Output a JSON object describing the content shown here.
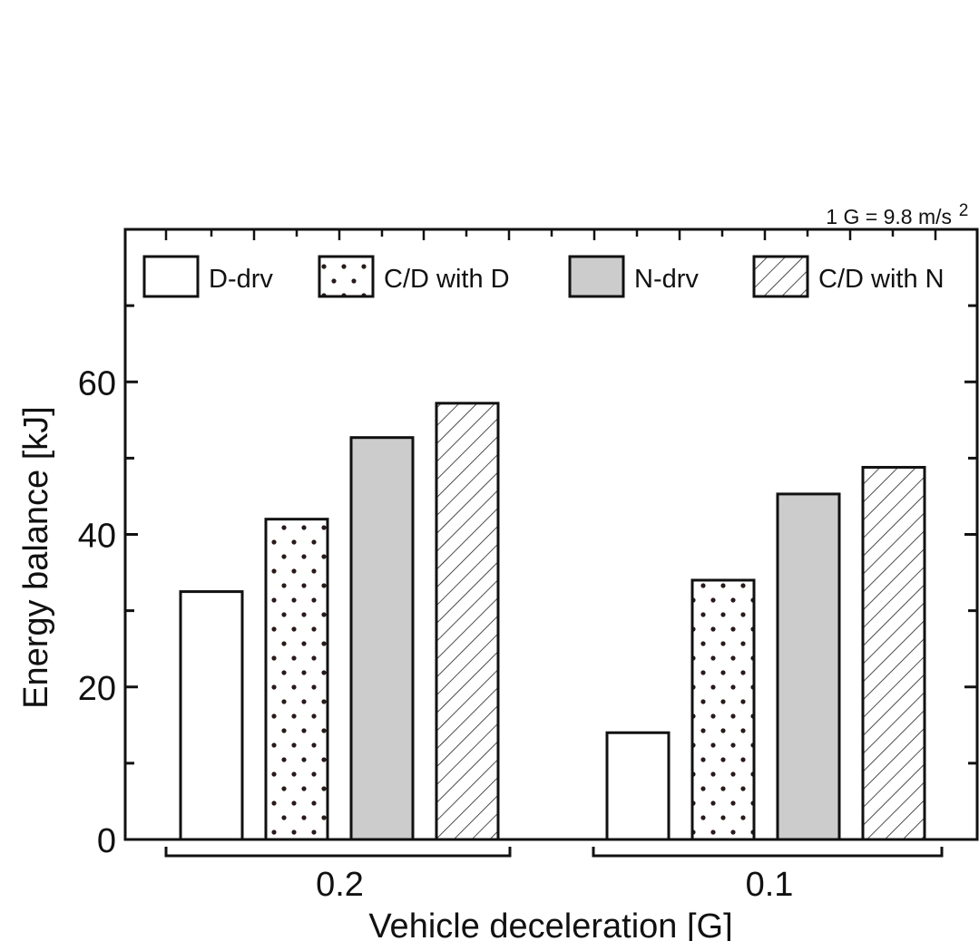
{
  "chart_data": {
    "type": "bar",
    "xlabel": "Vehicle deceleration [G]",
    "ylabel": "Energy balance [kJ]",
    "note": "1 G = 9.8 m/s",
    "note_sup": "2",
    "categories": [
      "0.2",
      "0.1"
    ],
    "series": [
      {
        "name": "D-drv",
        "pattern": "none",
        "fill": "#ffffff",
        "values": [
          32.5,
          14.0
        ]
      },
      {
        "name": "C/D with D",
        "pattern": "dots",
        "fill": "#ffffff",
        "values": [
          42.0,
          34.0
        ]
      },
      {
        "name": "N-drv",
        "pattern": "none",
        "fill": "#cccccc",
        "values": [
          52.7,
          45.3
        ]
      },
      {
        "name": "C/D with N",
        "pattern": "hatch",
        "fill": "#ffffff",
        "values": [
          57.2,
          48.8
        ]
      }
    ],
    "ylim": [
      0,
      80
    ],
    "yticks": [
      "0",
      "20",
      "40",
      "60"
    ],
    "ytick_values": [
      0,
      20,
      40,
      60
    ],
    "grid": false,
    "legend_position": "top"
  }
}
